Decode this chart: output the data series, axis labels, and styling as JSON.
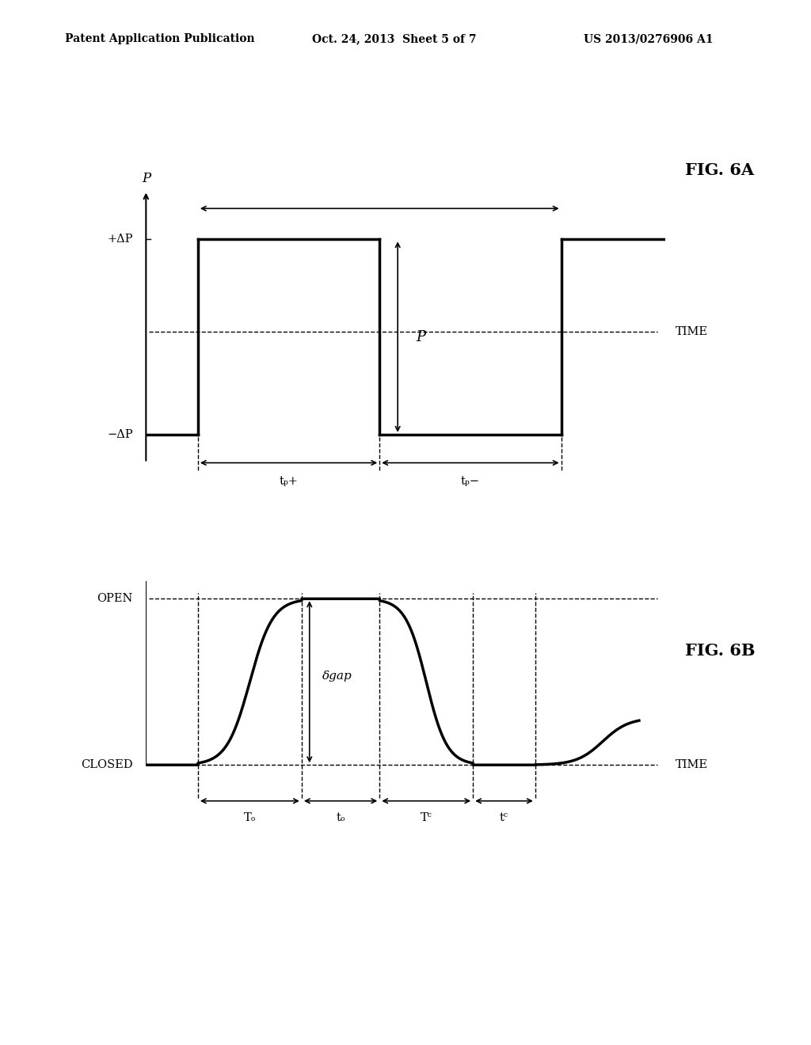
{
  "bg_color": "#ffffff",
  "header_left": "Patent Application Publication",
  "header_mid": "Oct. 24, 2013  Sheet 5 of 7",
  "header_right": "US 2013/0276906 A1",
  "fig_label_6A": "FIG. 6A",
  "fig_label_6B": "FIG. 6B",
  "lw_signal": 2.5,
  "lw_axis": 1.5,
  "lw_dashed": 1.0,
  "lw_arrow": 1.2
}
